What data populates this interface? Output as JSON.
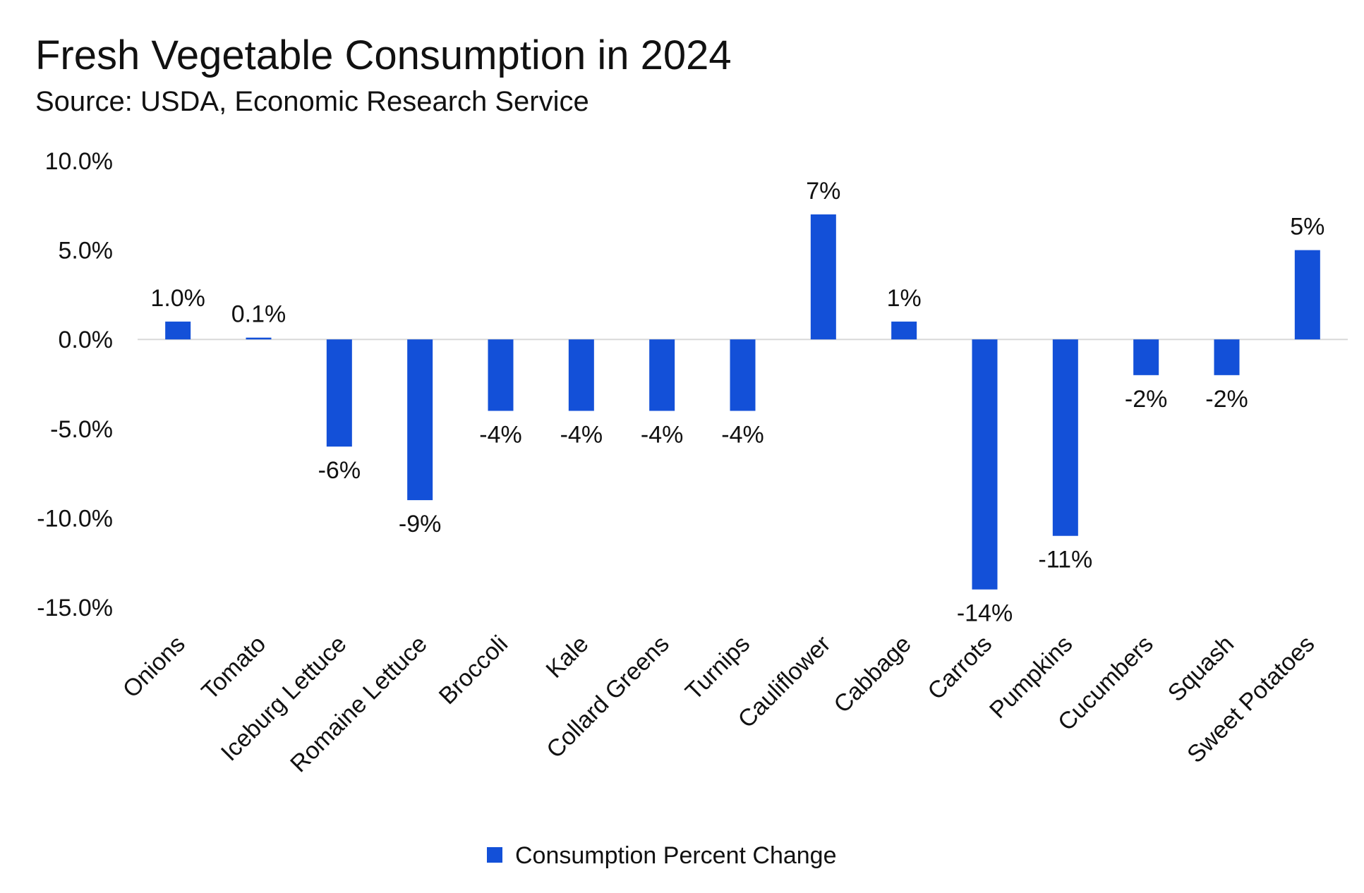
{
  "chart_data": {
    "type": "bar",
    "title": "Fresh Vegetable Consumption in 2024",
    "subtitle": "Source: USDA, Economic Research Service",
    "categories": [
      "Onions",
      "Tomato",
      "Iceburg Lettuce",
      "Romaine Lettuce",
      "Broccoli",
      "Kale",
      "Collard Greens",
      "Turnips",
      "Cauliflower",
      "Cabbage",
      "Carrots",
      "Pumpkins",
      "Cucumbers",
      "Squash",
      "Sweet Potatoes"
    ],
    "series": [
      {
        "name": "Consumption Percent Change",
        "values": [
          1.0,
          0.1,
          -6,
          -9,
          -4,
          -4,
          -4,
          -4,
          7,
          1,
          -14,
          -11,
          -2,
          -2,
          5
        ],
        "data_labels": [
          "1.0%",
          "0.1%",
          "-6%",
          "-9%",
          "-4%",
          "-4%",
          "-4%",
          "-4%",
          "7%",
          "1%",
          "-14%",
          "-11%",
          "-2%",
          "-2%",
          "5%"
        ]
      }
    ],
    "y_ticks": [
      10,
      5,
      0,
      -5,
      -10,
      -15
    ],
    "y_tick_labels": [
      "10.0%",
      "5.0%",
      "0.0%",
      "-5.0%",
      "-10.0%",
      "-15.0%"
    ],
    "ylim": [
      -15,
      10
    ],
    "xlabel": "",
    "ylabel": "",
    "grid": false,
    "legend_position": "bottom-center",
    "colors": {
      "bar": "#1350d8",
      "zero_line": "#d9d9d9",
      "text": "#111111"
    }
  }
}
